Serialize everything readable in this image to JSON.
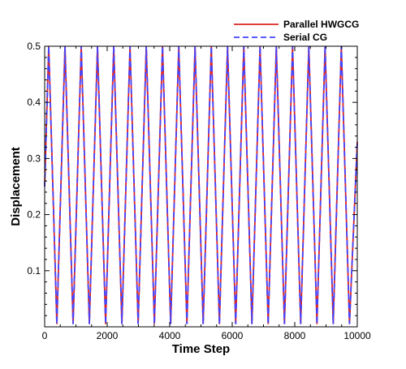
{
  "chart_data": {
    "type": "line",
    "xlabel": "Time Step",
    "ylabel": "Displacement",
    "xlim": [
      0,
      10000
    ],
    "ylim": [
      0,
      0.5
    ],
    "y_min_value": 0.005,
    "x_ticks": [
      0,
      2000,
      4000,
      6000,
      8000,
      10000
    ],
    "x_tick_labels": [
      "0",
      "2000",
      "4000",
      "6000",
      "8000",
      "10000"
    ],
    "y_ticks": [
      0.1,
      0.2,
      0.3,
      0.4,
      0.5
    ],
    "y_tick_labels": [
      "0.1",
      "0.2",
      "0.3",
      "0.4",
      "0.5"
    ],
    "legend_placement": "top-right",
    "grid": false,
    "series": [
      {
        "name": "Parallel HWGCG",
        "color": "#dd2222",
        "style": "solid",
        "x": [
          0,
          130,
          390,
          650,
          910,
          1170,
          1430,
          1690,
          1950,
          2210,
          2470,
          2730,
          2990,
          3250,
          3510,
          3770,
          4030,
          4290,
          4550,
          4810,
          5070,
          5330,
          5590,
          5850,
          6110,
          6370,
          6630,
          6890,
          7150,
          7410,
          7670,
          7930,
          8190,
          8450,
          8710,
          8970,
          9230,
          9490,
          9750,
          10000
        ],
        "y": [
          0.25,
          0.5,
          0.005,
          0.5,
          0.005,
          0.5,
          0.005,
          0.5,
          0.005,
          0.5,
          0.005,
          0.5,
          0.005,
          0.5,
          0.005,
          0.5,
          0.005,
          0.5,
          0.005,
          0.5,
          0.005,
          0.5,
          0.005,
          0.5,
          0.005,
          0.5,
          0.005,
          0.5,
          0.005,
          0.5,
          0.005,
          0.5,
          0.005,
          0.5,
          0.005,
          0.5,
          0.005,
          0.5,
          0.005,
          0.33
        ]
      },
      {
        "name": "Serial CG",
        "color": "#4444ff",
        "style": "dashed",
        "x": [
          0,
          130,
          390,
          650,
          910,
          1170,
          1430,
          1690,
          1950,
          2210,
          2470,
          2730,
          2990,
          3250,
          3510,
          3770,
          4030,
          4290,
          4550,
          4810,
          5070,
          5330,
          5590,
          5850,
          6110,
          6370,
          6630,
          6890,
          7150,
          7410,
          7670,
          7930,
          8190,
          8450,
          8710,
          8970,
          9230,
          9490,
          9750,
          10000
        ],
        "y": [
          0.25,
          0.5,
          0.005,
          0.5,
          0.005,
          0.5,
          0.005,
          0.5,
          0.005,
          0.5,
          0.005,
          0.5,
          0.005,
          0.5,
          0.005,
          0.5,
          0.005,
          0.5,
          0.005,
          0.5,
          0.005,
          0.5,
          0.005,
          0.5,
          0.005,
          0.5,
          0.005,
          0.5,
          0.005,
          0.5,
          0.005,
          0.5,
          0.005,
          0.5,
          0.005,
          0.5,
          0.005,
          0.5,
          0.005,
          0.33
        ]
      }
    ]
  }
}
